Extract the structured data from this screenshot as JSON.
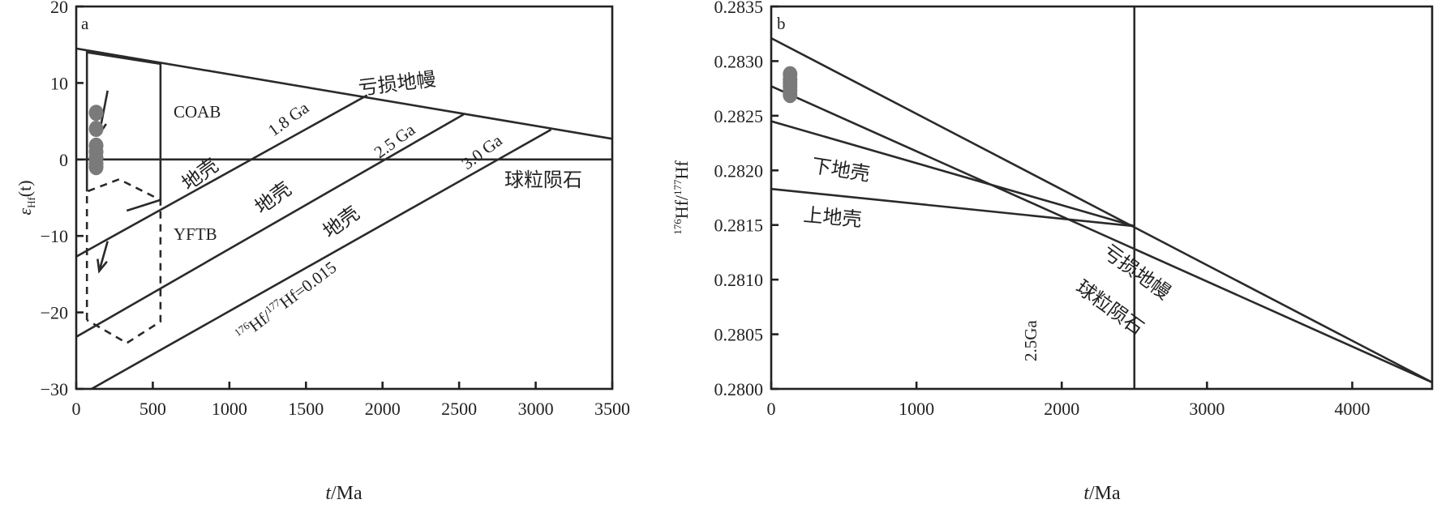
{
  "chart_data": [
    {
      "type": "line",
      "panel_label": "a",
      "xlabel": {
        "italic": "t",
        "rest": "/Ma"
      },
      "ylabel": {
        "epsilon": "ε",
        "sub": "Hf",
        "rest": "(t)"
      },
      "xlim": [
        0,
        3500
      ],
      "ylim": [
        -30,
        20
      ],
      "xticks": [
        0,
        500,
        1000,
        1500,
        2000,
        2500,
        3000,
        3500
      ],
      "yticks": [
        20,
        10,
        0,
        -10,
        -20,
        -30
      ],
      "ytick_labels": [
        "20",
        "10",
        "0",
        "−10",
        "−20",
        "−30"
      ],
      "series": [
        {
          "x": [
            0,
            3500
          ],
          "y": [
            14.5,
            2.7
          ]
        },
        {
          "x": [
            0,
            3500
          ],
          "y": [
            0,
            0
          ]
        },
        {
          "x": [
            0,
            1900
          ],
          "y": [
            -12.7,
            8.4
          ]
        },
        {
          "x": [
            0,
            2530
          ],
          "y": [
            -23.2,
            5.9
          ]
        },
        {
          "x": [
            100,
            3100
          ],
          "y": [
            -30,
            3.9
          ]
        }
      ],
      "line_labels": [
        {
          "text": "亏损地幔"
        },
        {
          "text": "球粒陨石"
        },
        {
          "text": "1.8 Ga"
        },
        {
          "text": "2.5 Ga"
        },
        {
          "text": "3.0 Ga"
        },
        {
          "text": "地壳"
        },
        {
          "text": "地壳"
        },
        {
          "text": "地壳"
        }
      ],
      "ratio_label": {
        "a": "176",
        "b": "Hf/",
        "c": "177",
        "d": "Hf=0.015"
      },
      "fields": [
        {
          "name": "COAB",
          "outline": [
            [
              70,
              -4.2
            ],
            [
              70,
              14
            ],
            [
              550,
              12.5
            ],
            [
              550,
              -5.3
            ],
            [
              330,
              -6.7
            ]
          ]
        },
        {
          "name": "YFTB",
          "outline": [
            [
              70,
              -21
            ],
            [
              70,
              -4.2
            ],
            [
              280,
              -2.6
            ],
            [
              550,
              -5.3
            ],
            [
              550,
              -21.2
            ],
            [
              330,
              -24
            ],
            [
              70,
              -21
            ]
          ]
        }
      ],
      "data_points": {
        "x": [
          130,
          130,
          130,
          130,
          130,
          130,
          130
        ],
        "y": [
          6.1,
          4.0,
          1.8,
          1.0,
          0.2,
          -0.5,
          -1.0
        ]
      }
    },
    {
      "type": "line",
      "panel_label": "b",
      "xlabel": {
        "italic": "t",
        "rest": "/Ma"
      },
      "ylabel": {
        "a": "176",
        "b": "Hf/",
        "c": "177",
        "d": "Hf"
      },
      "xlim": [
        0,
        4550
      ],
      "ylim": [
        0.28,
        0.2835
      ],
      "xticks": [
        0,
        1000,
        2000,
        3000,
        4000
      ],
      "yticks": [
        0.2835,
        0.283,
        0.2825,
        0.282,
        0.2815,
        0.281,
        0.2805,
        0.28
      ],
      "ytick_labels": [
        "0.2835",
        "0.2830",
        "0.2825",
        "0.2820",
        "0.2815",
        "0.2810",
        "0.2805",
        "0.2800"
      ],
      "series": [
        {
          "x": [
            0,
            4550
          ],
          "y": [
            0.28321,
            0.28006
          ]
        },
        {
          "x": [
            0,
            4550
          ],
          "y": [
            0.28277,
            0.28006
          ]
        },
        {
          "x": [
            0,
            2500
          ],
          "y": [
            0.28245,
            0.28149
          ]
        },
        {
          "x": [
            0,
            2500
          ],
          "y": [
            0.28183,
            0.28149
          ]
        },
        {
          "x": [
            2500,
            2500
          ],
          "y": [
            0.2835,
            0.28
          ]
        }
      ],
      "line_labels": [
        {
          "text": "下地壳"
        },
        {
          "text": "上地壳"
        },
        {
          "text": "亏损地幔"
        },
        {
          "text": "球粒陨石"
        },
        {
          "text": "2.5Ga"
        }
      ],
      "data_points": {
        "x": [
          130,
          130,
          130,
          130,
          130,
          130
        ],
        "y": [
          0.28288,
          0.28283,
          0.2828,
          0.28277,
          0.28273,
          0.28269
        ]
      }
    }
  ]
}
